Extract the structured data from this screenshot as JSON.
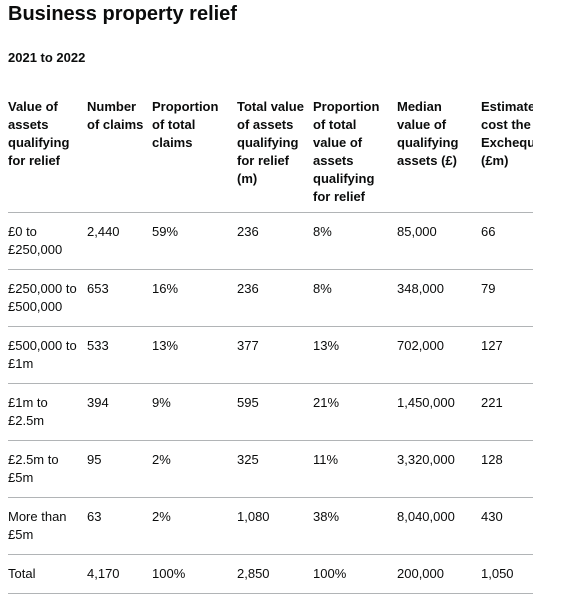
{
  "header": {
    "title": "Business property relief",
    "subtitle": "2021 to 2022"
  },
  "table": {
    "columns": [
      "Value of assets qualifying for relief",
      "Number of claims",
      "Proportion of total claims",
      "Total value of assets qualifying for relief (m)",
      "Proportion of total value of assets qualifying for relief",
      "Median value of qualifying assets (£)",
      "Estimate tax cost the Exchequ (£m)"
    ],
    "rows": [
      [
        "£0 to £250,000",
        "2,440",
        "59%",
        "236",
        "8%",
        "85,000",
        "66"
      ],
      [
        "£250,000 to £500,000",
        "653",
        "16%",
        "236",
        "8%",
        "348,000",
        "79"
      ],
      [
        "£500,000 to £1m",
        "533",
        "13%",
        "377",
        "13%",
        "702,000",
        "127"
      ],
      [
        "£1m to £2.5m",
        "394",
        "9%",
        "595",
        "21%",
        "1,450,000",
        "221"
      ],
      [
        "£2.5m to £5m",
        "95",
        "2%",
        "325",
        "11%",
        "3,320,000",
        "128"
      ],
      [
        "More than £5m",
        "63",
        "2%",
        "1,080",
        "38%",
        "8,040,000",
        "430"
      ],
      [
        "Total",
        "4,170",
        "100%",
        "2,850",
        "100%",
        "200,000",
        "1,050"
      ]
    ]
  }
}
